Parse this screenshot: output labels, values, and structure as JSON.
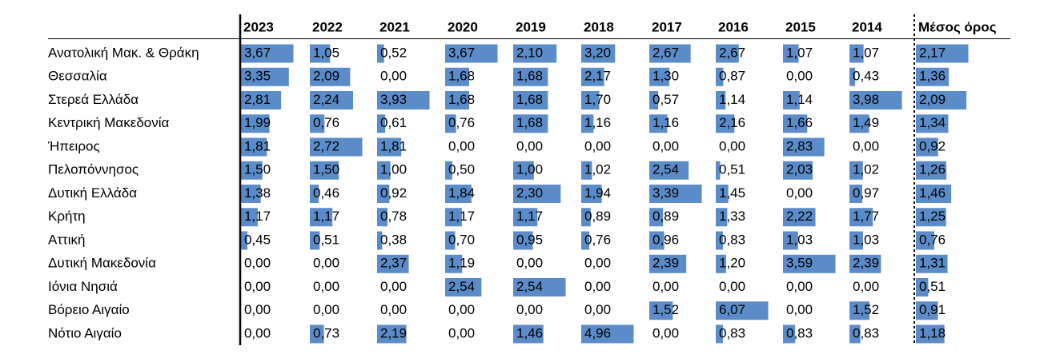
{
  "table": {
    "columns": [
      "2023",
      "2022",
      "2021",
      "2020",
      "2019",
      "2018",
      "2017",
      "2016",
      "2015",
      "2014",
      "Μέσος όρος"
    ],
    "rows": [
      {
        "label": "Ανατολική Μακ. & Θράκη",
        "cells": [
          "3,67",
          "1,05",
          "0,52",
          "3,67",
          "2,10",
          "3,20",
          "2,67",
          "2,67",
          "1,07",
          "1,07",
          "2,17"
        ]
      },
      {
        "label": "Θεσσαλία",
        "cells": [
          "3,35",
          "2,09",
          "0,00",
          "1,68",
          "1,68",
          "2,17",
          "1,30",
          "0,87",
          "0,00",
          "0,43",
          "1,36"
        ]
      },
      {
        "label": "Στερεά Ελλάδα",
        "cells": [
          "2,81",
          "2,24",
          "3,93",
          "1,68",
          "1,68",
          "1,70",
          "0,57",
          "1,14",
          "1,14",
          "3,98",
          "2,09"
        ]
      },
      {
        "label": "Κεντρική Μακεδονία",
        "cells": [
          "1,99",
          "0,76",
          "0,61",
          "0,76",
          "1,68",
          "1,16",
          "1,16",
          "2,16",
          "1,66",
          "1,49",
          "1,34"
        ]
      },
      {
        "label": "Ήπειρος",
        "cells": [
          "1,81",
          "2,72",
          "1,81",
          "0,00",
          "0,00",
          "0,00",
          "0,00",
          "0,00",
          "2,83",
          "0,00",
          "0,92"
        ]
      },
      {
        "label": "Πελοπόννησος",
        "cells": [
          "1,50",
          "1,50",
          "1,00",
          "0,50",
          "1,00",
          "1,02",
          "2,54",
          "0,51",
          "2,03",
          "1,02",
          "1,26"
        ]
      },
      {
        "label": "Δυτική Ελλάδα",
        "cells": [
          "1,38",
          "0,46",
          "0,92",
          "1,84",
          "2,30",
          "1,94",
          "3,39",
          "1,45",
          "0,00",
          "0,97",
          "1,46"
        ]
      },
      {
        "label": "Κρήτη",
        "cells": [
          "1,17",
          "1,17",
          "0,78",
          "1,17",
          "1,17",
          "0,89",
          "0,89",
          "1,33",
          "2,22",
          "1,77",
          "1,25"
        ]
      },
      {
        "label": "Αττική",
        "cells": [
          "0,45",
          "0,51",
          "0,38",
          "0,70",
          "0,95",
          "0,76",
          "0,96",
          "0,83",
          "1,03",
          "1,03",
          "0,76"
        ]
      },
      {
        "label": "Δυτική Μακεδονία",
        "cells": [
          "0,00",
          "0,00",
          "2,37",
          "1,19",
          "0,00",
          "0,00",
          "2,39",
          "1,20",
          "3,59",
          "2,39",
          "1,31"
        ]
      },
      {
        "label": "Ιόνια Νησιά",
        "cells": [
          "0,00",
          "0,00",
          "0,00",
          "2,54",
          "2,54",
          "0,00",
          "0,00",
          "0,00",
          "0,00",
          "0,00",
          "0,51"
        ]
      },
      {
        "label": "Βόρειο Αιγαίο",
        "cells": [
          "0,00",
          "0,00",
          "0,00",
          "0,00",
          "0,00",
          "0,00",
          "1,52",
          "6,07",
          "0,00",
          "1,52",
          "0,91"
        ]
      },
      {
        "label": "Νότιο Αιγαίο",
        "cells": [
          "0,00",
          "0,73",
          "2,19",
          "0,00",
          "1,46",
          "4,96",
          "0,00",
          "0,83",
          "0,83",
          "0,83",
          "1,18"
        ]
      }
    ],
    "bar_color": "#5b8cc9"
  }
}
